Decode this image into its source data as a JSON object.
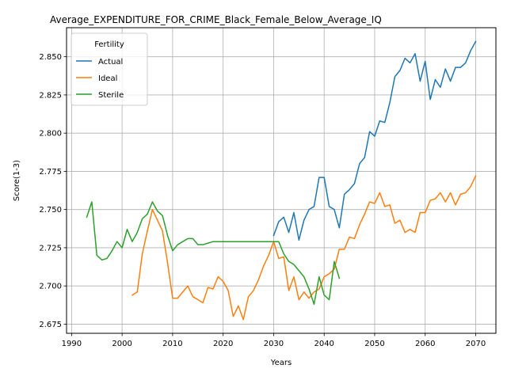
{
  "chart_data": {
    "type": "line",
    "title": "Average_EXPENDITURE_FOR_CRIME_Black_Female_Below_Average_IQ",
    "xlabel": "Years",
    "ylabel": "Score(1-3)",
    "xlim": [
      1989,
      2074
    ],
    "ylim": [
      2.669,
      2.869
    ],
    "xticks": [
      1990,
      2000,
      2010,
      2020,
      2030,
      2040,
      2050,
      2060,
      2070
    ],
    "yticks": [
      2.675,
      2.7,
      2.725,
      2.75,
      2.775,
      2.8,
      2.825,
      2.85
    ],
    "ytick_labels": [
      "2.675",
      "2.700",
      "2.725",
      "2.750",
      "2.775",
      "2.800",
      "2.825",
      "2.850"
    ],
    "grid": true,
    "legend": {
      "title": "Fertility",
      "placement": "top-left"
    },
    "series": [
      {
        "name": "Actual",
        "color": "#1f77b4",
        "x": [
          2030,
          2031,
          2032,
          2033,
          2034,
          2035,
          2036,
          2037,
          2038,
          2039,
          2040,
          2041,
          2042,
          2043,
          2044,
          2045,
          2046,
          2047,
          2048,
          2049,
          2050,
          2051,
          2052,
          2053,
          2054,
          2055,
          2056,
          2057,
          2058,
          2059,
          2060,
          2061,
          2062,
          2063,
          2064,
          2065,
          2066,
          2067,
          2068,
          2069,
          2070
        ],
        "y": [
          2.733,
          2.742,
          2.745,
          2.735,
          2.748,
          2.73,
          2.743,
          2.75,
          2.752,
          2.771,
          2.771,
          2.752,
          2.75,
          2.738,
          2.76,
          2.763,
          2.767,
          2.78,
          2.784,
          2.801,
          2.798,
          2.808,
          2.807,
          2.82,
          2.837,
          2.841,
          2.849,
          2.846,
          2.852,
          2.834,
          2.847,
          2.822,
          2.835,
          2.83,
          2.842,
          2.834,
          2.843,
          2.843,
          2.846,
          2.854,
          2.86
        ]
      },
      {
        "name": "Ideal",
        "color": "#ff7f0e",
        "x": [
          2002,
          2003,
          2004,
          2005,
          2006,
          2007,
          2008,
          2009,
          2010,
          2011,
          2012,
          2013,
          2014,
          2015,
          2016,
          2017,
          2018,
          2019,
          2020,
          2021,
          2022,
          2023,
          2024,
          2025,
          2026,
          2027,
          2028,
          2029,
          2030,
          2031,
          2032,
          2033,
          2034,
          2035,
          2036,
          2037,
          2038,
          2039,
          2040,
          2041,
          2042,
          2043,
          2044,
          2045,
          2046,
          2047,
          2048,
          2049,
          2050,
          2051,
          2052,
          2053,
          2054,
          2055,
          2056,
          2057,
          2058,
          2059,
          2060,
          2061,
          2062,
          2063,
          2064,
          2065,
          2066,
          2067,
          2068,
          2069,
          2070
        ],
        "y": [
          2.694,
          2.696,
          2.721,
          2.736,
          2.75,
          2.743,
          2.736,
          2.715,
          2.692,
          2.692,
          2.696,
          2.7,
          2.693,
          2.691,
          2.689,
          2.699,
          2.698,
          2.706,
          2.703,
          2.697,
          2.68,
          2.687,
          2.678,
          2.693,
          2.697,
          2.704,
          2.713,
          2.72,
          2.729,
          2.718,
          2.719,
          2.697,
          2.706,
          2.691,
          2.696,
          2.692,
          2.696,
          2.698,
          2.706,
          2.708,
          2.711,
          2.724,
          2.724,
          2.732,
          2.731,
          2.74,
          2.747,
          2.755,
          2.754,
          2.761,
          2.752,
          2.753,
          2.741,
          2.743,
          2.735,
          2.737,
          2.735,
          2.748,
          2.748,
          2.756,
          2.757,
          2.761,
          2.755,
          2.761,
          2.753,
          2.76,
          2.761,
          2.765,
          2.772
        ]
      },
      {
        "name": "Sterile",
        "color": "#2ca02c",
        "x": [
          1993,
          1994,
          1995,
          1996,
          1997,
          1998,
          1999,
          2000,
          2001,
          2002,
          2003,
          2004,
          2005,
          2006,
          2007,
          2008,
          2009,
          2010,
          2011,
          2012,
          2013,
          2014,
          2015,
          2016,
          2017,
          2018,
          2019,
          2020,
          2021,
          2022,
          2023,
          2024,
          2025,
          2026,
          2027,
          2028,
          2029,
          2030,
          2031,
          2032,
          2033,
          2034,
          2035,
          2036,
          2037,
          2038,
          2039,
          2040,
          2041,
          2042,
          2043
        ],
        "y": [
          2.745,
          2.755,
          2.72,
          2.717,
          2.718,
          2.723,
          2.729,
          2.725,
          2.737,
          2.729,
          2.735,
          2.744,
          2.747,
          2.755,
          2.749,
          2.746,
          2.733,
          2.723,
          2.727,
          2.729,
          2.731,
          2.731,
          2.727,
          2.727,
          2.728,
          2.729,
          2.729,
          2.729,
          2.729,
          2.729,
          2.729,
          2.729,
          2.729,
          2.729,
          2.729,
          2.729,
          2.729,
          2.729,
          2.729,
          2.721,
          2.716,
          2.714,
          2.71,
          2.706,
          2.698,
          2.688,
          2.706,
          2.694,
          2.691,
          2.716,
          2.705
        ]
      }
    ]
  }
}
